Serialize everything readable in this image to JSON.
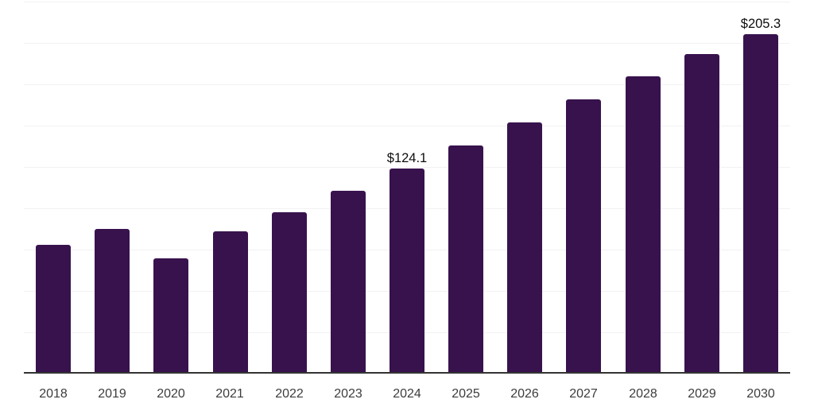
{
  "chart_data": {
    "type": "bar",
    "title": "",
    "xlabel": "",
    "ylabel": "",
    "categories": [
      "2018",
      "2019",
      "2020",
      "2021",
      "2022",
      "2023",
      "2024",
      "2025",
      "2026",
      "2027",
      "2028",
      "2029",
      "2030"
    ],
    "values": [
      78.0,
      87.4,
      69.8,
      86.0,
      97.8,
      110.6,
      124.1,
      137.8,
      152.0,
      166.0,
      179.6,
      193.3,
      205.3
    ],
    "data_labels": {
      "2024": "$124.1",
      "2030": "$205.3"
    },
    "value_prefix": "$",
    "ylim": [
      0,
      225
    ],
    "grid_step": 25,
    "grid": true,
    "legend": "none",
    "colors": {
      "bar": "#38124d",
      "gridline": "#f2f2f2",
      "axis_line": "#333333",
      "tick_label": "#3c3c3c",
      "data_label": "#0d0d0d",
      "background": "#ffffff"
    }
  }
}
